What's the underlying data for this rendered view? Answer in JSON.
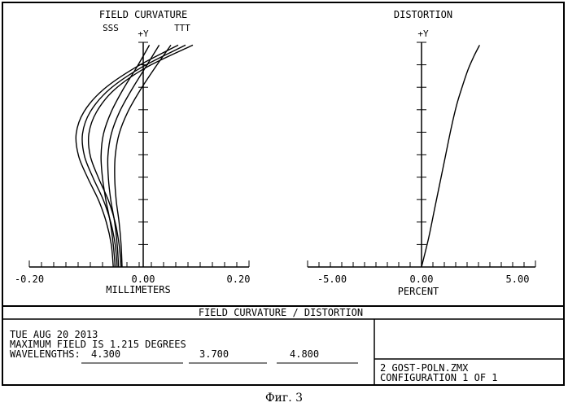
{
  "chart_data": [
    {
      "type": "line",
      "title": "FIELD CURVATURE",
      "xlabel": "MILLIMETERS",
      "axis_label": "+Y",
      "xlim": [
        -0.25,
        0.2
      ],
      "ylim": [
        0,
        1.215
      ],
      "x_ticks": [
        "-0.20",
        "0.00",
        "0.20"
      ],
      "sagittal_label": "SSS",
      "tangential_label": "TTT",
      "series": [
        {
          "x": [
            -0.06,
            -0.062,
            -0.066,
            -0.072,
            -0.075,
            -0.074,
            -0.066,
            -0.048,
            -0.022,
            0.008,
            0.04
          ],
          "y": [
            0,
            0.12,
            0.24,
            0.36,
            0.48,
            0.6,
            0.72,
            0.84,
            0.96,
            1.08,
            1.2
          ]
        },
        {
          "x": [
            -0.067,
            -0.07,
            -0.075,
            -0.083,
            -0.088,
            -0.089,
            -0.082,
            -0.065,
            -0.04,
            -0.012,
            0.016
          ],
          "y": [
            0,
            0.12,
            0.24,
            0.36,
            0.48,
            0.6,
            0.72,
            0.84,
            0.96,
            1.08,
            1.2
          ]
        },
        {
          "x": [
            -0.074,
            -0.078,
            -0.084,
            -0.093,
            -0.1,
            -0.103,
            -0.098,
            -0.082,
            -0.058,
            -0.03,
            -0.004
          ],
          "y": [
            0,
            0.12,
            0.24,
            0.36,
            0.48,
            0.6,
            0.72,
            0.84,
            0.96,
            1.08,
            1.2
          ]
        },
        {
          "x": [
            -0.062,
            -0.066,
            -0.074,
            -0.088,
            -0.108,
            -0.125,
            -0.128,
            -0.112,
            -0.075,
            -0.01,
            0.085
          ],
          "y": [
            0,
            0.12,
            0.24,
            0.36,
            0.48,
            0.6,
            0.72,
            0.84,
            0.96,
            1.08,
            1.2
          ]
        },
        {
          "x": [
            -0.07,
            -0.074,
            -0.083,
            -0.098,
            -0.119,
            -0.137,
            -0.141,
            -0.125,
            -0.086,
            -0.02,
            0.07
          ],
          "y": [
            0,
            0.12,
            0.24,
            0.36,
            0.48,
            0.6,
            0.72,
            0.84,
            0.96,
            1.08,
            1.2
          ]
        },
        {
          "x": [
            -0.078,
            -0.082,
            -0.092,
            -0.108,
            -0.13,
            -0.149,
            -0.154,
            -0.138,
            -0.098,
            -0.032,
            0.055
          ],
          "y": [
            0,
            0.12,
            0.24,
            0.36,
            0.48,
            0.6,
            0.72,
            0.84,
            0.96,
            1.08,
            1.2
          ]
        }
      ]
    },
    {
      "type": "line",
      "title": "DISTORTION",
      "xlabel": "PERCENT",
      "axis_label": "+Y",
      "xlim": [
        -5,
        5
      ],
      "ylim": [
        0,
        1.215
      ],
      "x_ticks": [
        "-5.00",
        "0.00",
        "5.00"
      ],
      "series": [
        {
          "x": [
            0,
            0.3,
            0.55,
            0.8,
            1.05,
            1.3,
            1.55,
            1.8,
            2.05,
            2.3,
            2.55
          ],
          "y": [
            0,
            0.15,
            0.3,
            0.45,
            0.6,
            0.75,
            0.88,
            0.98,
            1.07,
            1.14,
            1.2
          ]
        }
      ]
    }
  ],
  "panel": {
    "header": "FIELD CURVATURE / DISTORTION",
    "date": "TUE AUG 20 2013",
    "max_field": "MAXIMUM FIELD IS 1.215 DEGREES",
    "wavelengths_label": "WAVELENGTHS:",
    "wavelengths": [
      "4.300",
      "3.700",
      "4.800"
    ],
    "file": "2 GOST-POLN.ZMX",
    "configuration": "CONFIGURATION 1 OF 1"
  },
  "caption": "Фиг. 3"
}
